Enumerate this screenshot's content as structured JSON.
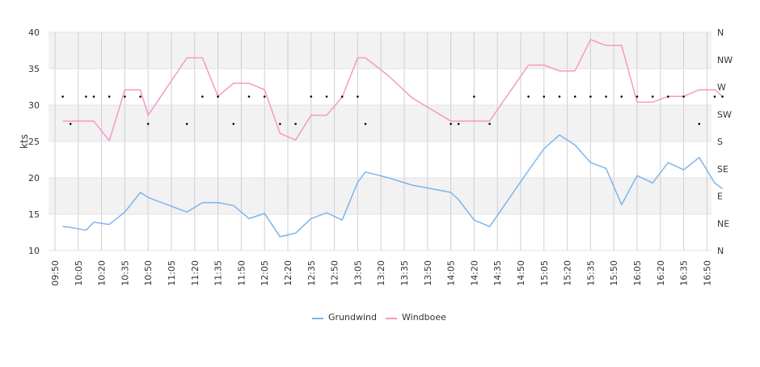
{
  "chart_data": {
    "type": "line",
    "ylabel": "kts",
    "ylim": [
      10,
      40
    ],
    "y_ticks": [
      "10",
      "15",
      "20",
      "25",
      "30",
      "35",
      "40"
    ],
    "y2_ticks": [
      "N",
      "NE",
      "E",
      "SE",
      "S",
      "SW",
      "W",
      "NW",
      "N"
    ],
    "x_ticks": [
      "09:50",
      "10:05",
      "10:20",
      "10:35",
      "10:50",
      "11:05",
      "11:20",
      "11:35",
      "11:50",
      "12:05",
      "12:20",
      "12:35",
      "12:50",
      "13:05",
      "13:20",
      "13:35",
      "13:50",
      "14:05",
      "14:20",
      "14:35",
      "14:50",
      "15:05",
      "15:20",
      "15:35",
      "15:50",
      "16:05",
      "16:20",
      "16:35",
      "16:50"
    ],
    "legend": [
      "Grundwind",
      "Windboee"
    ],
    "legend_position": "bottom",
    "colors": {
      "Grundwind": "#7cb5ec",
      "Windboee": "#f39ac7"
    },
    "series": [
      {
        "name": "Grundwind",
        "points": [
          [
            "09:55",
            13.3
          ],
          [
            "10:00",
            13.2
          ],
          [
            "10:10",
            12.8
          ],
          [
            "10:15",
            13.9
          ],
          [
            "10:25",
            13.6
          ],
          [
            "10:35",
            15.3
          ],
          [
            "10:45",
            18.0
          ],
          [
            "10:50",
            17.3
          ],
          [
            "11:15",
            15.3
          ],
          [
            "11:25",
            16.6
          ],
          [
            "11:35",
            16.6
          ],
          [
            "11:45",
            16.2
          ],
          [
            "11:55",
            14.4
          ],
          [
            "12:05",
            15.1
          ],
          [
            "12:15",
            11.9
          ],
          [
            "12:25",
            12.4
          ],
          [
            "12:35",
            14.4
          ],
          [
            "12:45",
            15.2
          ],
          [
            "12:55",
            14.2
          ],
          [
            "13:05",
            19.4
          ],
          [
            "13:10",
            20.8
          ],
          [
            "13:25",
            20.0
          ],
          [
            "13:40",
            19.0
          ],
          [
            "14:05",
            18.0
          ],
          [
            "14:10",
            17.0
          ],
          [
            "14:20",
            14.2
          ],
          [
            "14:30",
            13.3
          ],
          [
            "14:55",
            21.0
          ],
          [
            "15:05",
            24.0
          ],
          [
            "15:15",
            25.9
          ],
          [
            "15:25",
            24.5
          ],
          [
            "15:35",
            22.1
          ],
          [
            "15:45",
            21.3
          ],
          [
            "15:55",
            16.3
          ],
          [
            "16:05",
            20.3
          ],
          [
            "16:15",
            19.3
          ],
          [
            "16:25",
            22.1
          ],
          [
            "16:35",
            21.1
          ],
          [
            "16:45",
            22.8
          ],
          [
            "16:55",
            19.3
          ],
          [
            "17:00",
            18.5
          ]
        ]
      },
      {
        "name": "Windboee",
        "points": [
          [
            "09:55",
            27.8
          ],
          [
            "10:00",
            27.8
          ],
          [
            "10:10",
            27.8
          ],
          [
            "10:15",
            27.8
          ],
          [
            "10:25",
            25.1
          ],
          [
            "10:35",
            32.1
          ],
          [
            "10:45",
            32.1
          ],
          [
            "10:50",
            28.6
          ],
          [
            "11:15",
            36.5
          ],
          [
            "11:25",
            36.5
          ],
          [
            "11:35",
            31.2
          ],
          [
            "11:45",
            33.0
          ],
          [
            "11:55",
            33.0
          ],
          [
            "12:05",
            32.1
          ],
          [
            "12:15",
            26.1
          ],
          [
            "12:25",
            25.2
          ],
          [
            "12:35",
            28.6
          ],
          [
            "12:45",
            28.6
          ],
          [
            "12:55",
            31.1
          ],
          [
            "13:05",
            36.5
          ],
          [
            "13:10",
            36.5
          ],
          [
            "13:25",
            34.0
          ],
          [
            "13:40",
            31.0
          ],
          [
            "14:05",
            27.8
          ],
          [
            "14:10",
            27.8
          ],
          [
            "14:20",
            27.8
          ],
          [
            "14:30",
            27.8
          ],
          [
            "14:55",
            35.5
          ],
          [
            "15:05",
            35.5
          ],
          [
            "15:15",
            34.7
          ],
          [
            "15:25",
            34.7
          ],
          [
            "15:35",
            39.0
          ],
          [
            "15:45",
            38.2
          ],
          [
            "15:55",
            38.2
          ],
          [
            "16:05",
            30.4
          ],
          [
            "16:15",
            30.4
          ],
          [
            "16:25",
            31.2
          ],
          [
            "16:35",
            31.2
          ],
          [
            "16:45",
            32.1
          ],
          [
            "16:55",
            32.1
          ],
          [
            "17:00",
            31.2
          ]
        ]
      }
    ],
    "direction_markers": [
      [
        "09:55",
        "W"
      ],
      [
        "10:00",
        "SW"
      ],
      [
        "10:10",
        "W"
      ],
      [
        "10:15",
        "W"
      ],
      [
        "10:25",
        "W"
      ],
      [
        "10:35",
        "W"
      ],
      [
        "10:45",
        "W"
      ],
      [
        "10:50",
        "SW"
      ],
      [
        "11:15",
        "SW"
      ],
      [
        "11:25",
        "W"
      ],
      [
        "11:35",
        "W"
      ],
      [
        "11:45",
        "SW"
      ],
      [
        "11:55",
        "W"
      ],
      [
        "12:05",
        "W"
      ],
      [
        "12:15",
        "SW"
      ],
      [
        "12:25",
        "SW"
      ],
      [
        "12:35",
        "W"
      ],
      [
        "12:45",
        "W"
      ],
      [
        "12:55",
        "W"
      ],
      [
        "13:05",
        "W"
      ],
      [
        "13:10",
        "SW"
      ],
      [
        "14:05",
        "SW"
      ],
      [
        "14:10",
        "SW"
      ],
      [
        "14:20",
        "W"
      ],
      [
        "14:30",
        "SW"
      ],
      [
        "14:55",
        "W"
      ],
      [
        "15:05",
        "W"
      ],
      [
        "15:15",
        "W"
      ],
      [
        "15:25",
        "W"
      ],
      [
        "15:35",
        "W"
      ],
      [
        "15:45",
        "W"
      ],
      [
        "15:55",
        "W"
      ],
      [
        "16:05",
        "W"
      ],
      [
        "16:15",
        "W"
      ],
      [
        "16:25",
        "W"
      ],
      [
        "16:35",
        "W"
      ],
      [
        "16:45",
        "SW"
      ],
      [
        "16:55",
        "W"
      ],
      [
        "17:00",
        "W"
      ]
    ]
  }
}
